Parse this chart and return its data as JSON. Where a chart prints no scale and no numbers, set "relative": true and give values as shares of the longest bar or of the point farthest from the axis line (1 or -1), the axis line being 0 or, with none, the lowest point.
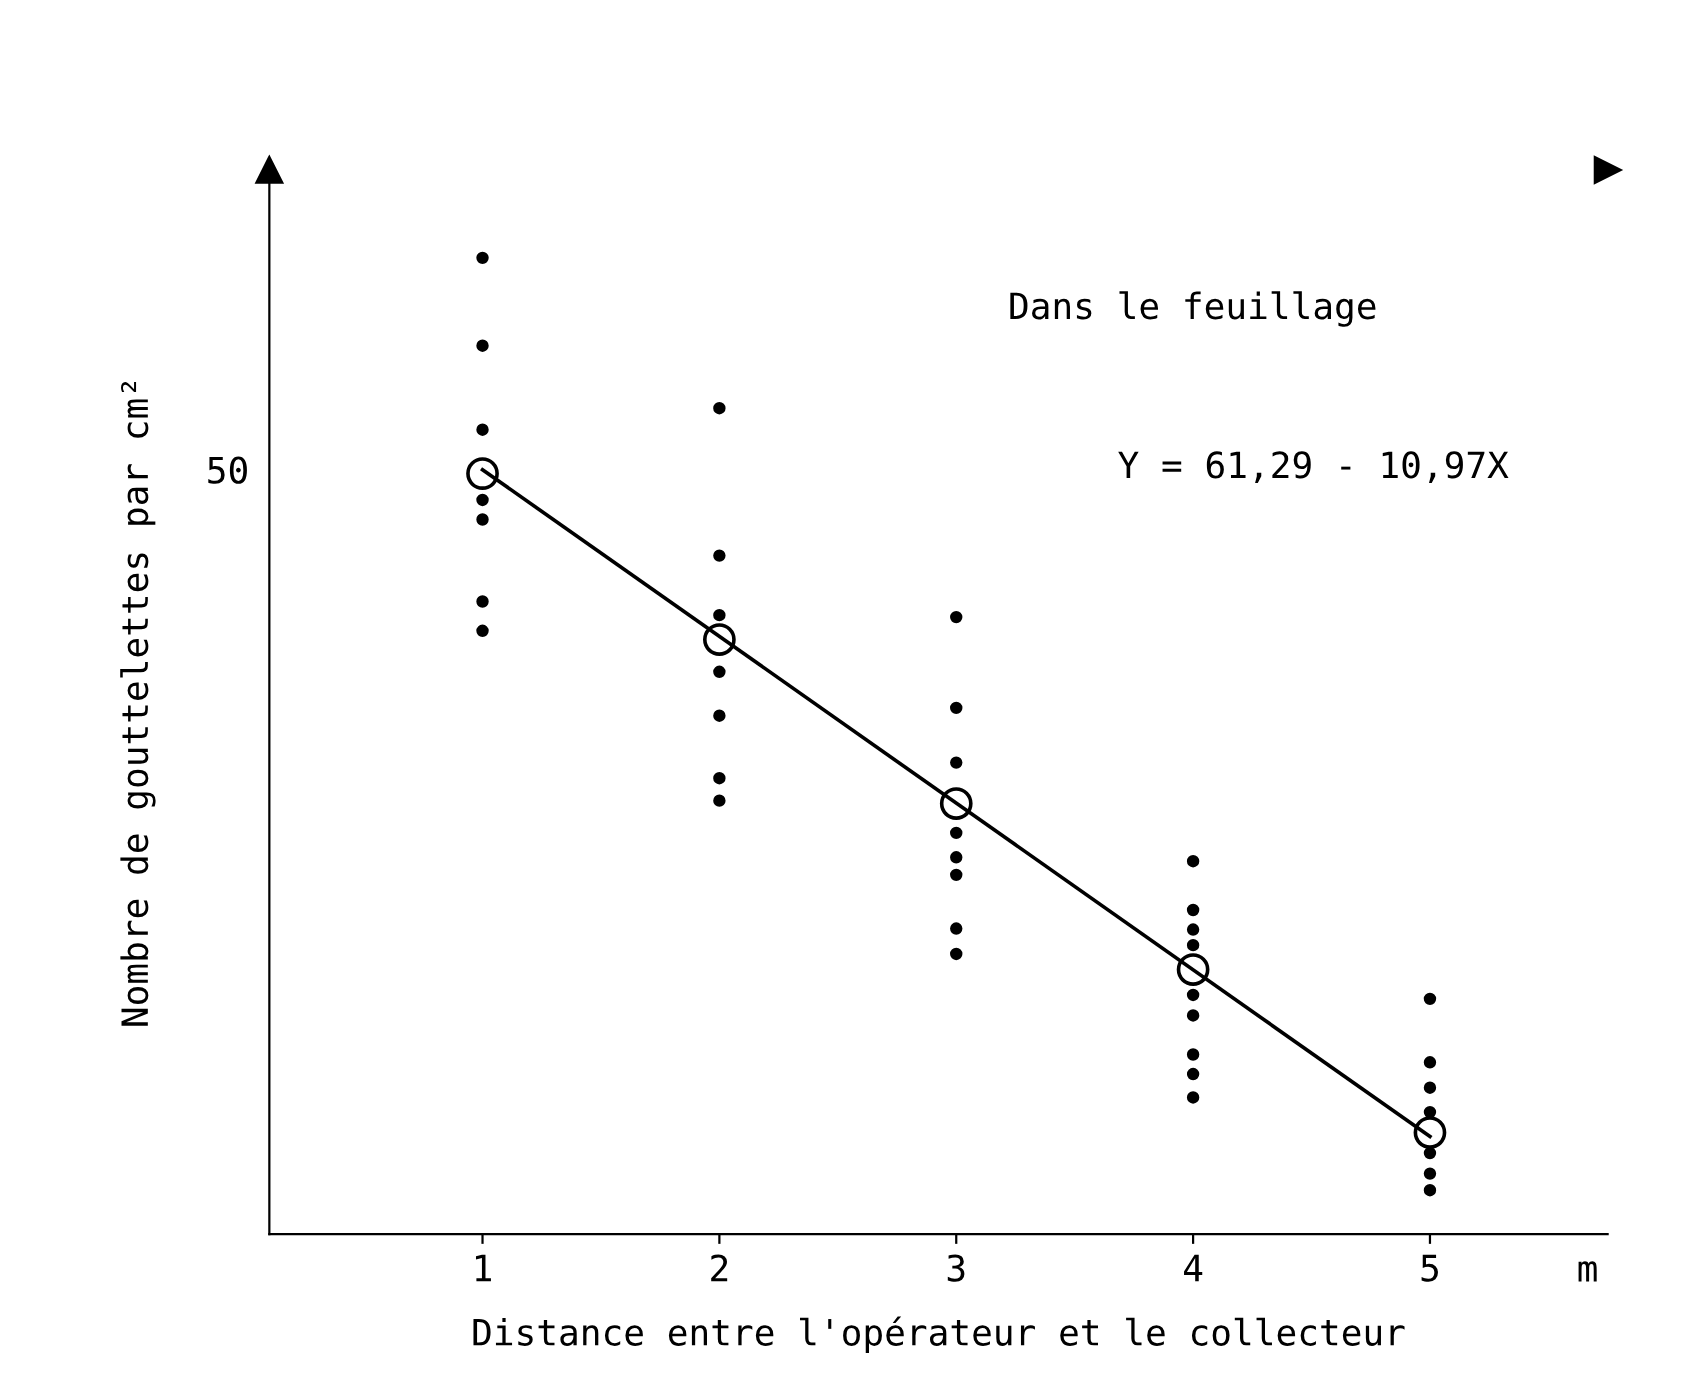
{
  "chart_data": {
    "type": "scatter",
    "title": "Dans le feuillage",
    "xlabel": "Distance entre l'opérateur et le collecteur",
    "ylabel": "Nombre de gouttelettes par cm²",
    "annotations": [
      "Y = 61,29 - 10,97X",
      "m",
      "50"
    ],
    "xlim": [
      0.1,
      5.75
    ],
    "xticks": [
      1,
      2,
      3,
      4,
      5
    ],
    "relative": true,
    "grid": false,
    "series": [
      {
        "marker": "circle",
        "color": "#000000",
        "x": [
          1,
          1,
          1,
          1,
          1,
          1,
          1,
          2,
          2,
          2,
          2,
          2,
          2,
          2,
          3,
          3,
          3,
          3,
          3,
          3,
          3,
          3,
          4,
          4,
          4,
          4,
          4,
          4,
          4,
          4,
          4,
          5,
          5,
          5,
          5,
          5,
          5,
          5
        ],
        "values": [
          1.0,
          0.91,
          0.824,
          0.752,
          0.732,
          0.648,
          0.618,
          0.846,
          0.695,
          0.634,
          0.576,
          0.531,
          0.467,
          0.444,
          0.632,
          0.539,
          0.483,
          0.411,
          0.386,
          0.368,
          0.313,
          0.287,
          0.382,
          0.332,
          0.312,
          0.296,
          0.245,
          0.224,
          0.184,
          0.164,
          0.14,
          0.241,
          0.176,
          0.15,
          0.125,
          0.083,
          0.062,
          0.045
        ]
      },
      {
        "type": "line",
        "marker": "none",
        "color": "#000000",
        "x": [
          1,
          5
        ],
        "values": [
          0.783,
          0.1
        ]
      },
      {
        "marker": "open circle",
        "color": "#000000",
        "x": [
          1,
          2,
          3,
          4,
          5
        ],
        "values": [
          0.779,
          0.609,
          0.441,
          0.271,
          0.104
        ]
      }
    ]
  }
}
